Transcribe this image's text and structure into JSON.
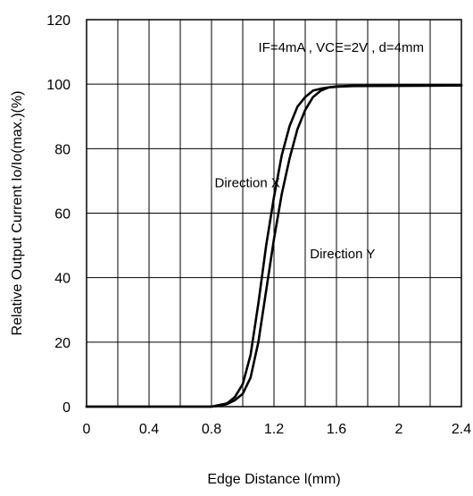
{
  "chart_data": {
    "type": "line",
    "title": "",
    "xlabel": "Edge Distance l(mm)",
    "ylabel": "Relative Output Current Io/Io(max.)(%)",
    "xlim": [
      0,
      2.4
    ],
    "ylim": [
      0,
      120
    ],
    "xticks": [
      0,
      0.4,
      0.8,
      1.2,
      1.6,
      2.0,
      2.4
    ],
    "xtick_labels": [
      "0",
      "0.4",
      "0.8",
      "1.2",
      "1.6",
      "2",
      "2.4"
    ],
    "yticks": [
      0,
      20,
      40,
      60,
      80,
      100,
      120
    ],
    "ytick_labels": [
      "0",
      "20",
      "40",
      "60",
      "80",
      "100",
      "120"
    ],
    "grid": true,
    "annotations": [
      {
        "text": "IF=4mA , VCE=2V , d=4mm",
        "x": 1.1,
        "y": 110
      },
      {
        "text": "Direction X",
        "x": 0.82,
        "y": 68
      },
      {
        "text": "Direction Y",
        "x": 1.43,
        "y": 46
      }
    ],
    "series": [
      {
        "name": "Direction X",
        "x": [
          0,
          0.8,
          0.85,
          0.9,
          0.95,
          1.0,
          1.05,
          1.1,
          1.15,
          1.2,
          1.25,
          1.3,
          1.35,
          1.4,
          1.45,
          1.5,
          1.55,
          1.6,
          1.65,
          1.7,
          2.0,
          2.4
        ],
        "y": [
          0,
          0,
          0.5,
          1,
          3,
          7,
          16,
          32,
          50,
          65,
          78,
          87,
          93,
          96,
          98,
          98.6,
          99,
          99.2,
          99.3,
          99.4,
          99.5,
          99.6
        ],
        "color": "#000000"
      },
      {
        "name": "Direction Y",
        "x": [
          0,
          0.8,
          0.85,
          0.9,
          0.95,
          1.0,
          1.05,
          1.1,
          1.15,
          1.2,
          1.25,
          1.3,
          1.35,
          1.4,
          1.45,
          1.5,
          1.55,
          1.6,
          1.65,
          1.7,
          2.0,
          2.4
        ],
        "y": [
          0,
          0,
          0.3,
          0.8,
          2,
          4,
          9,
          20,
          36,
          52,
          66,
          77,
          86,
          92,
          96,
          98,
          99,
          99.3,
          99.4,
          99.5,
          99.5,
          99.6
        ],
        "color": "#000000"
      }
    ]
  }
}
